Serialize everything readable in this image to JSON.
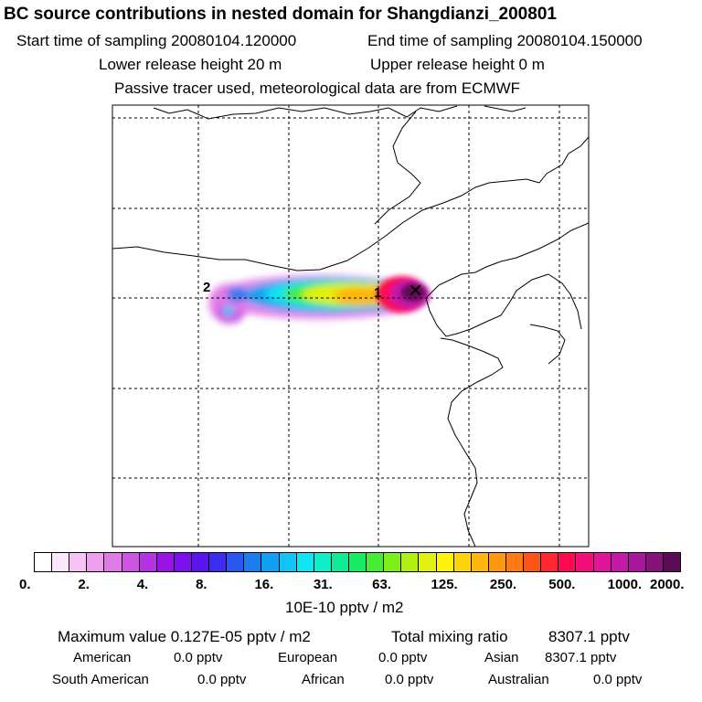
{
  "header": {
    "title": "BC  source contributions in nested domain for Shangdianzi_200801",
    "start_time": "Start time of sampling 20080104.120000",
    "end_time": "End time of sampling 20080104.150000",
    "lower_height": "Lower release height   20 m",
    "upper_height": "Upper release height    0 m",
    "tracer_note": "Passive tracer used, meteorological data are from ECMWF"
  },
  "map": {
    "markers": [
      "1",
      "2"
    ],
    "receptor_symbol": "×"
  },
  "colorbar": {
    "ticks": [
      "0.",
      "2.",
      "4.",
      "8.",
      "16.",
      "31.",
      "63.",
      "125.",
      "250.",
      "500.",
      "1000.",
      "2000."
    ],
    "colors": [
      "#ffffff",
      "#fde6fb",
      "#f6c3f4",
      "#ef9eee",
      "#e07ae8",
      "#cc55e4",
      "#b533e3",
      "#9a12e6",
      "#7a10ea",
      "#5a14ee",
      "#3d2df0",
      "#2a55ee",
      "#1c7cf0",
      "#14a0f2",
      "#12c4f4",
      "#0fe6f0",
      "#0ff0c8",
      "#10ec96",
      "#1aea66",
      "#44ec36",
      "#7cf018",
      "#b0f010",
      "#e2f00e",
      "#fff00f",
      "#ffd40f",
      "#ffb60f",
      "#ff9810",
      "#ff7a12",
      "#ff5418",
      "#ff2830",
      "#ff0a52",
      "#f40f78",
      "#e0159a",
      "#c618a8",
      "#a8189c",
      "#85137a",
      "#5c0b55"
    ],
    "units": "10E-10 pptv / m2"
  },
  "summary": {
    "max_value": "Maximum value  0.127E-05 pptv / m2",
    "total_label": "Total mixing ratio",
    "total_value": "8307.1 pptv",
    "american_label": "American",
    "american_value": "0.0 pptv",
    "european_label": "European",
    "european_value": "0.0 pptv",
    "asian_label": "Asian",
    "asian_value": "8307.1 pptv",
    "south_american_label": "South American",
    "south_american_value": "0.0 pptv",
    "african_label": "African",
    "african_value": "0.0 pptv",
    "australian_label": "Australian",
    "australian_value": "0.0 pptv"
  }
}
